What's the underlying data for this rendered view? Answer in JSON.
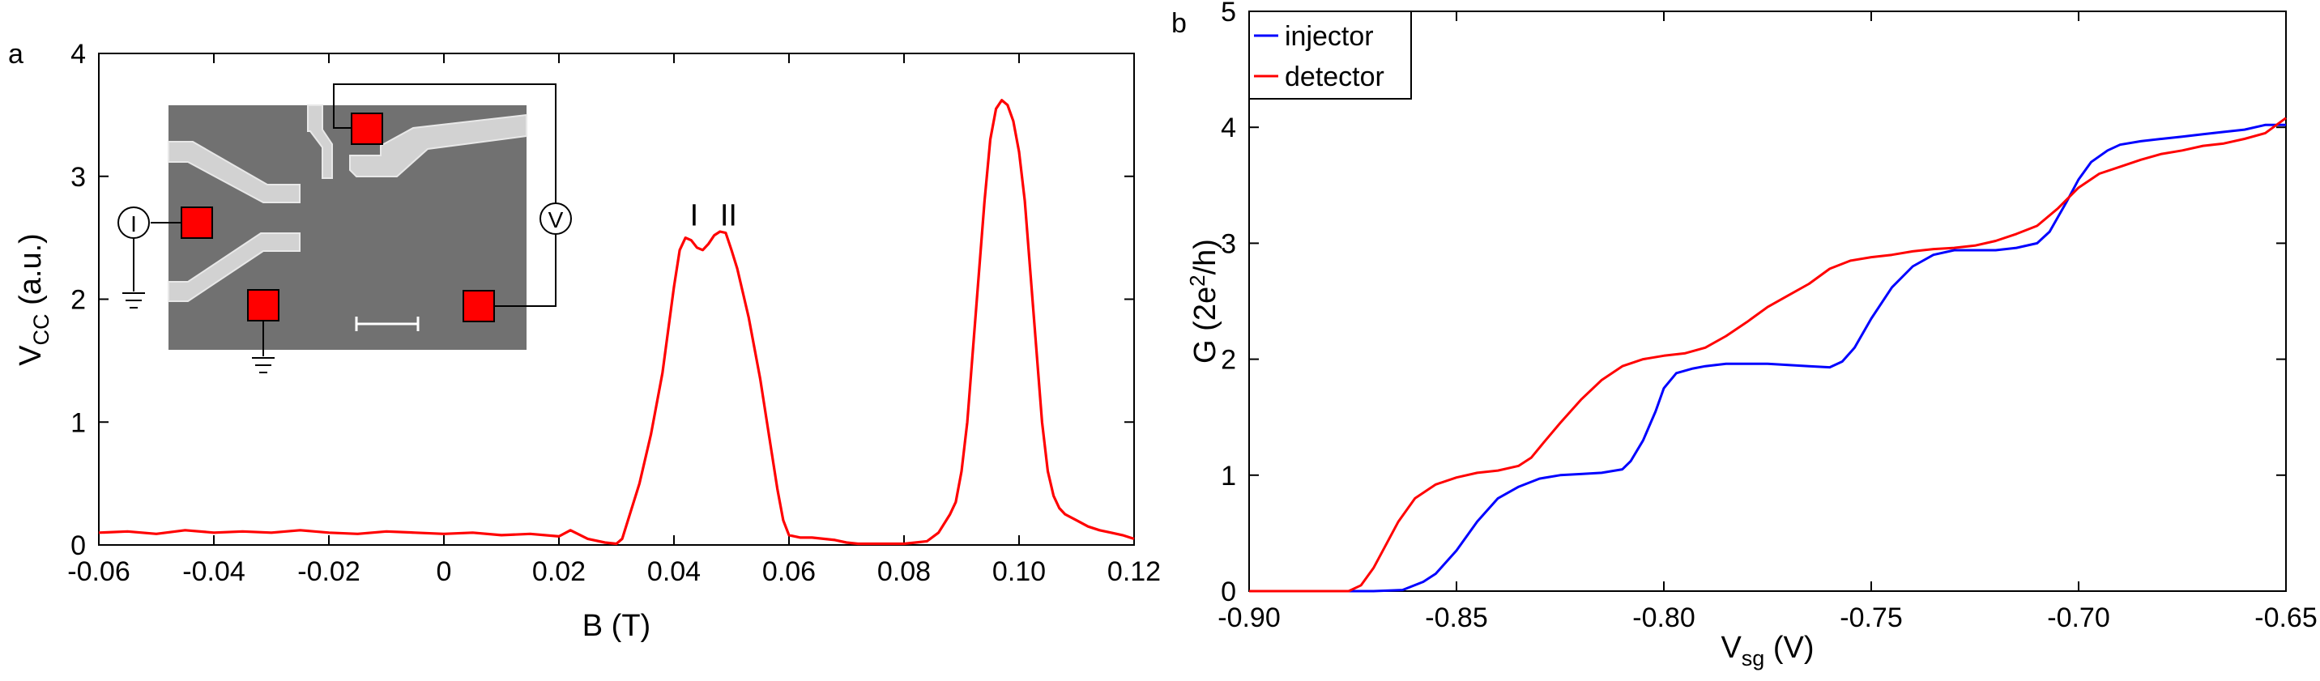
{
  "panel_a_label": "a",
  "panel_b_label": "b",
  "colors": {
    "red": "#ff0000",
    "blue": "#0000ff",
    "axis": "#000000",
    "sem_bg": "#6f6f6f",
    "sem_gate": "#cfcfcf"
  },
  "chart_data": [
    {
      "type": "line",
      "panel": "a",
      "xlabel": "B (T)",
      "ylabel_main": "V",
      "ylabel_sub": "CC",
      "ylabel_unit": " (a.u.)",
      "xlim": [
        -0.06,
        0.12
      ],
      "ylim": [
        0,
        4
      ],
      "xticks": [
        -0.06,
        -0.04,
        -0.02,
        0,
        0.02,
        0.04,
        0.06,
        0.08,
        0.1,
        0.12
      ],
      "xtick_labels": [
        "-0.06",
        "-0.04",
        "-0.02",
        "0",
        "0.02",
        "0.04",
        "0.06",
        "0.08",
        "0.10",
        "0.12"
      ],
      "yticks": [
        0,
        1,
        2,
        3,
        4
      ],
      "ytick_labels": [
        "0",
        "1",
        "2",
        "3",
        "4"
      ],
      "grid": false,
      "annotations": [
        {
          "text": "I",
          "x": 0.0435,
          "y": 2.6
        },
        {
          "text": "II",
          "x": 0.0495,
          "y": 2.6
        }
      ],
      "inset": {
        "description_labels": {
          "current_source": "I",
          "voltmeter": "V"
        }
      },
      "series": [
        {
          "color": "#ff0000",
          "x": [
            -0.06,
            -0.055,
            -0.05,
            -0.045,
            -0.04,
            -0.035,
            -0.03,
            -0.025,
            -0.02,
            -0.015,
            -0.01,
            -0.005,
            0.0,
            0.005,
            0.01,
            0.015,
            0.02,
            0.022,
            0.025,
            0.028,
            0.03,
            0.031,
            0.032,
            0.034,
            0.036,
            0.038,
            0.04,
            0.041,
            0.042,
            0.043,
            0.044,
            0.045,
            0.046,
            0.047,
            0.048,
            0.049,
            0.05,
            0.051,
            0.052,
            0.053,
            0.054,
            0.055,
            0.056,
            0.057,
            0.058,
            0.059,
            0.06,
            0.062,
            0.064,
            0.066,
            0.068,
            0.07,
            0.072,
            0.075,
            0.078,
            0.08,
            0.082,
            0.084,
            0.086,
            0.088,
            0.089,
            0.09,
            0.091,
            0.092,
            0.093,
            0.094,
            0.095,
            0.096,
            0.097,
            0.098,
            0.099,
            0.1,
            0.101,
            0.102,
            0.103,
            0.104,
            0.105,
            0.106,
            0.107,
            0.108,
            0.11,
            0.112,
            0.114,
            0.116,
            0.118,
            0.12
          ],
          "y": [
            0.1,
            0.11,
            0.09,
            0.12,
            0.1,
            0.11,
            0.1,
            0.12,
            0.1,
            0.09,
            0.11,
            0.1,
            0.09,
            0.1,
            0.08,
            0.09,
            0.07,
            0.12,
            0.05,
            0.02,
            0.01,
            0.05,
            0.2,
            0.5,
            0.9,
            1.4,
            2.1,
            2.4,
            2.5,
            2.48,
            2.42,
            2.4,
            2.45,
            2.52,
            2.55,
            2.54,
            2.4,
            2.25,
            2.05,
            1.85,
            1.6,
            1.35,
            1.05,
            0.75,
            0.45,
            0.2,
            0.08,
            0.06,
            0.06,
            0.05,
            0.04,
            0.02,
            0.01,
            0.01,
            0.01,
            0.01,
            0.02,
            0.03,
            0.1,
            0.25,
            0.35,
            0.6,
            1.0,
            1.6,
            2.2,
            2.8,
            3.3,
            3.55,
            3.62,
            3.58,
            3.45,
            3.2,
            2.8,
            2.2,
            1.6,
            1.0,
            0.6,
            0.4,
            0.3,
            0.25,
            0.2,
            0.15,
            0.12,
            0.1,
            0.08,
            0.05
          ]
        }
      ]
    },
    {
      "type": "line",
      "panel": "b",
      "xlabel_main": "V",
      "xlabel_sub": "sg",
      "xlabel_unit": " (V)",
      "ylabel_pre": "G (2e",
      "ylabel_sup": "2",
      "ylabel_post": "/h)",
      "xlim": [
        -0.9,
        -0.65
      ],
      "ylim": [
        0,
        5
      ],
      "xticks": [
        -0.9,
        -0.85,
        -0.8,
        -0.75,
        -0.7,
        -0.65
      ],
      "xtick_labels": [
        "-0.90",
        "-0.85",
        "-0.80",
        "-0.75",
        "-0.70",
        "-0.65"
      ],
      "yticks": [
        0,
        1,
        2,
        3,
        4,
        5
      ],
      "ytick_labels": [
        "0",
        "1",
        "2",
        "3",
        "4",
        "5"
      ],
      "grid": false,
      "legend_position": "top-left",
      "series": [
        {
          "name": "injector",
          "color": "#0000ff",
          "x": [
            -0.9,
            -0.87,
            -0.863,
            -0.858,
            -0.855,
            -0.85,
            -0.845,
            -0.84,
            -0.835,
            -0.83,
            -0.825,
            -0.82,
            -0.815,
            -0.81,
            -0.808,
            -0.805,
            -0.802,
            -0.8,
            -0.797,
            -0.793,
            -0.79,
            -0.785,
            -0.78,
            -0.775,
            -0.77,
            -0.765,
            -0.76,
            -0.757,
            -0.754,
            -0.75,
            -0.745,
            -0.74,
            -0.735,
            -0.73,
            -0.725,
            -0.72,
            -0.715,
            -0.71,
            -0.707,
            -0.703,
            -0.7,
            -0.697,
            -0.693,
            -0.69,
            -0.685,
            -0.68,
            -0.675,
            -0.67,
            -0.665,
            -0.66,
            -0.655,
            -0.65
          ],
          "y": [
            0,
            0,
            0.01,
            0.08,
            0.15,
            0.35,
            0.6,
            0.8,
            0.9,
            0.97,
            1.0,
            1.01,
            1.02,
            1.05,
            1.12,
            1.3,
            1.55,
            1.75,
            1.88,
            1.92,
            1.94,
            1.96,
            1.96,
            1.96,
            1.95,
            1.94,
            1.93,
            1.98,
            2.1,
            2.35,
            2.62,
            2.8,
            2.9,
            2.94,
            2.94,
            2.94,
            2.96,
            3.0,
            3.1,
            3.35,
            3.55,
            3.7,
            3.8,
            3.85,
            3.88,
            3.9,
            3.92,
            3.94,
            3.96,
            3.98,
            4.02,
            4.02
          ]
        },
        {
          "name": "detector",
          "color": "#ff0000",
          "x": [
            -0.9,
            -0.876,
            -0.873,
            -0.87,
            -0.867,
            -0.864,
            -0.86,
            -0.855,
            -0.85,
            -0.845,
            -0.84,
            -0.835,
            -0.832,
            -0.829,
            -0.825,
            -0.82,
            -0.815,
            -0.81,
            -0.805,
            -0.8,
            -0.795,
            -0.79,
            -0.785,
            -0.78,
            -0.775,
            -0.77,
            -0.765,
            -0.76,
            -0.755,
            -0.75,
            -0.745,
            -0.74,
            -0.735,
            -0.73,
            -0.725,
            -0.72,
            -0.715,
            -0.71,
            -0.705,
            -0.7,
            -0.695,
            -0.69,
            -0.685,
            -0.68,
            -0.675,
            -0.67,
            -0.665,
            -0.66,
            -0.655,
            -0.65
          ],
          "y": [
            0,
            0,
            0.05,
            0.2,
            0.4,
            0.6,
            0.8,
            0.92,
            0.98,
            1.02,
            1.04,
            1.08,
            1.15,
            1.28,
            1.45,
            1.65,
            1.82,
            1.94,
            2.0,
            2.03,
            2.05,
            2.1,
            2.2,
            2.32,
            2.45,
            2.55,
            2.65,
            2.78,
            2.85,
            2.88,
            2.9,
            2.93,
            2.95,
            2.96,
            2.98,
            3.02,
            3.08,
            3.15,
            3.3,
            3.48,
            3.6,
            3.66,
            3.72,
            3.77,
            3.8,
            3.84,
            3.86,
            3.9,
            3.95,
            4.08
          ]
        }
      ]
    }
  ]
}
